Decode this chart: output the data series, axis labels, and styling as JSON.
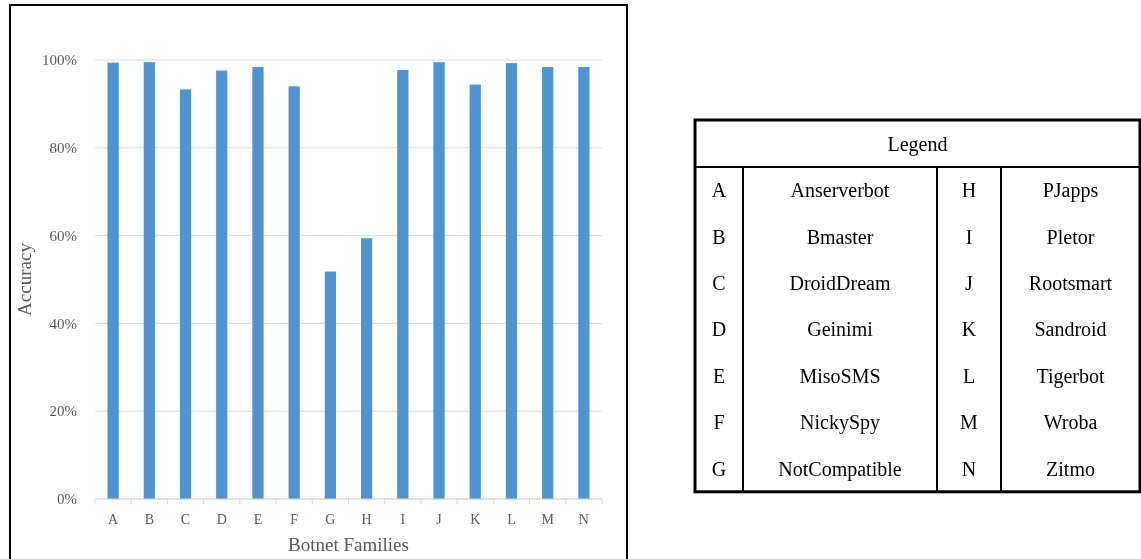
{
  "chart_data": [
    {
      "type": "bar",
      "xlabel": "Botnet Families",
      "ylabel": "Accuracy",
      "categories": [
        "A",
        "B",
        "C",
        "D",
        "E",
        "F",
        "G",
        "H",
        "I",
        "J",
        "K",
        "L",
        "M",
        "N"
      ],
      "values": [
        99.4,
        99.5,
        93.3,
        97.6,
        98.4,
        94.0,
        51.8,
        59.4,
        97.7,
        99.5,
        94.4,
        99.3,
        98.4,
        98.4
      ],
      "color": "#4f94d0",
      "ylim": [
        0,
        100
      ],
      "yticks": [
        {
          "value": 0,
          "label": "0%"
        },
        {
          "value": 20,
          "label": "20%"
        },
        {
          "value": 40,
          "label": "40%"
        },
        {
          "value": 60,
          "label": "60%"
        },
        {
          "value": 80,
          "label": "80%"
        },
        {
          "value": 100,
          "label": "100%"
        }
      ],
      "grid": "y"
    },
    {
      "type": "other",
      "title": "Legend",
      "annotations": [
        "A",
        "Anserverbot",
        "H",
        "PJapps",
        "B",
        "Bmaster",
        "I",
        "Pletor",
        "C",
        "DroidDream",
        "J",
        "Rootsmart",
        "D",
        "Geinimi",
        "K",
        "Sandroid",
        "E",
        "MisoSMS",
        "L",
        "Tigerbot",
        "F",
        "NickySpy",
        "M",
        "Wroba",
        "G",
        "NotCompatible",
        "N",
        "Zitmo"
      ]
    }
  ]
}
